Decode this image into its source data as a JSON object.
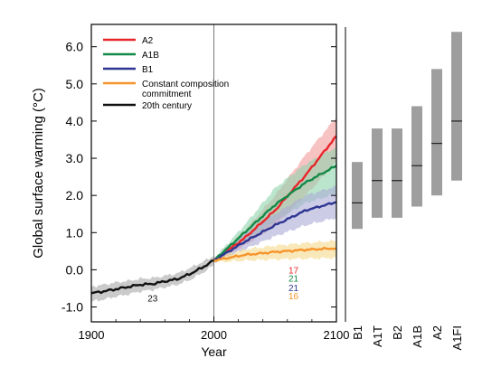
{
  "chart_data": {
    "type": "line",
    "xlabel": "Year",
    "ylabel": "Global surface warming (°C)",
    "xlim": [
      1900,
      2100
    ],
    "ylim": [
      -1.4,
      6.6
    ],
    "x_ticks": [
      1900,
      2000,
      2100
    ],
    "y_ticks": [
      -1.0,
      0.0,
      1.0,
      2.0,
      3.0,
      4.0,
      5.0,
      6.0
    ],
    "y_tick_labels": [
      "-1.0",
      "0.0",
      "1.0",
      "2.0",
      "3.0",
      "4.0",
      "5.0",
      "6.0"
    ],
    "vline_x": 2000,
    "legend_position": "top-left",
    "series": [
      {
        "name": "A2",
        "color": "#e8262a",
        "band_color": "#f29a9a",
        "x": [
          2000,
          2025,
          2050,
          2075,
          2100
        ],
        "y": [
          0.25,
          0.85,
          1.6,
          2.55,
          3.6
        ],
        "low": [
          0.2,
          0.65,
          1.2,
          2.0,
          2.9
        ],
        "high": [
          0.3,
          1.05,
          2.0,
          3.1,
          4.1
        ]
      },
      {
        "name": "A1B",
        "color": "#138a48",
        "band_color": "#8fd3ae",
        "x": [
          2000,
          2025,
          2050,
          2075,
          2100
        ],
        "y": [
          0.25,
          1.0,
          1.75,
          2.35,
          2.8
        ],
        "low": [
          0.2,
          0.75,
          1.3,
          1.8,
          2.05
        ],
        "high": [
          0.3,
          1.2,
          2.2,
          2.85,
          3.3
        ]
      },
      {
        "name": "B1",
        "color": "#2e3592",
        "band_color": "#aaaad6",
        "x": [
          2000,
          2025,
          2050,
          2075,
          2100
        ],
        "y": [
          0.25,
          0.75,
          1.2,
          1.6,
          1.82
        ],
        "low": [
          0.2,
          0.55,
          0.9,
          1.2,
          1.4
        ],
        "high": [
          0.3,
          0.95,
          1.5,
          2.0,
          2.25
        ]
      },
      {
        "name": "Constant composition commitment",
        "color": "#f7942b",
        "band_color": "#f5d98a",
        "x": [
          2000,
          2025,
          2050,
          2075,
          2100
        ],
        "y": [
          0.25,
          0.4,
          0.48,
          0.54,
          0.58
        ],
        "low": [
          0.2,
          0.25,
          0.28,
          0.3,
          0.32
        ],
        "high": [
          0.3,
          0.55,
          0.65,
          0.72,
          0.78
        ]
      },
      {
        "name": "20th century",
        "color": "#111111",
        "band_color": "#a8a8a8",
        "x": [
          1900,
          1910,
          1920,
          1930,
          1940,
          1950,
          1960,
          1970,
          1980,
          1990,
          2000
        ],
        "y": [
          -0.63,
          -0.58,
          -0.52,
          -0.46,
          -0.4,
          -0.38,
          -0.31,
          -0.25,
          -0.12,
          0.05,
          0.25
        ],
        "low": [
          -0.85,
          -0.8,
          -0.72,
          -0.66,
          -0.58,
          -0.54,
          -0.47,
          -0.4,
          -0.28,
          -0.1,
          0.13
        ],
        "high": [
          -0.45,
          -0.4,
          -0.34,
          -0.3,
          -0.24,
          -0.22,
          -0.16,
          -0.1,
          0.04,
          0.2,
          0.37
        ]
      }
    ],
    "model_counts": [
      {
        "label": "23",
        "x": 1950,
        "y": -0.75,
        "color": "#111111"
      },
      {
        "label": "17",
        "x": 2065,
        "y": 0.0,
        "color": "#e8262a"
      },
      {
        "label": "21",
        "x": 2065,
        "y": -0.22,
        "color": "#138a48"
      },
      {
        "label": "21",
        "x": 2065,
        "y": -0.47,
        "color": "#2e3592"
      },
      {
        "label": "16",
        "x": 2065,
        "y": -0.7,
        "color": "#f7942b"
      }
    ],
    "scenario_ranges": [
      {
        "name": "B1",
        "low": 1.1,
        "high": 2.9,
        "best": 1.8
      },
      {
        "name": "A1T",
        "low": 1.4,
        "high": 3.8,
        "best": 2.4
      },
      {
        "name": "B2",
        "low": 1.4,
        "high": 3.8,
        "best": 2.4
      },
      {
        "name": "A1B",
        "low": 1.7,
        "high": 4.4,
        "best": 2.8
      },
      {
        "name": "A2",
        "low": 2.0,
        "high": 5.4,
        "best": 3.4
      },
      {
        "name": "A1FI",
        "low": 2.4,
        "high": 6.4,
        "best": 4.0
      }
    ],
    "range_bar_color": "#9e9e9e"
  }
}
